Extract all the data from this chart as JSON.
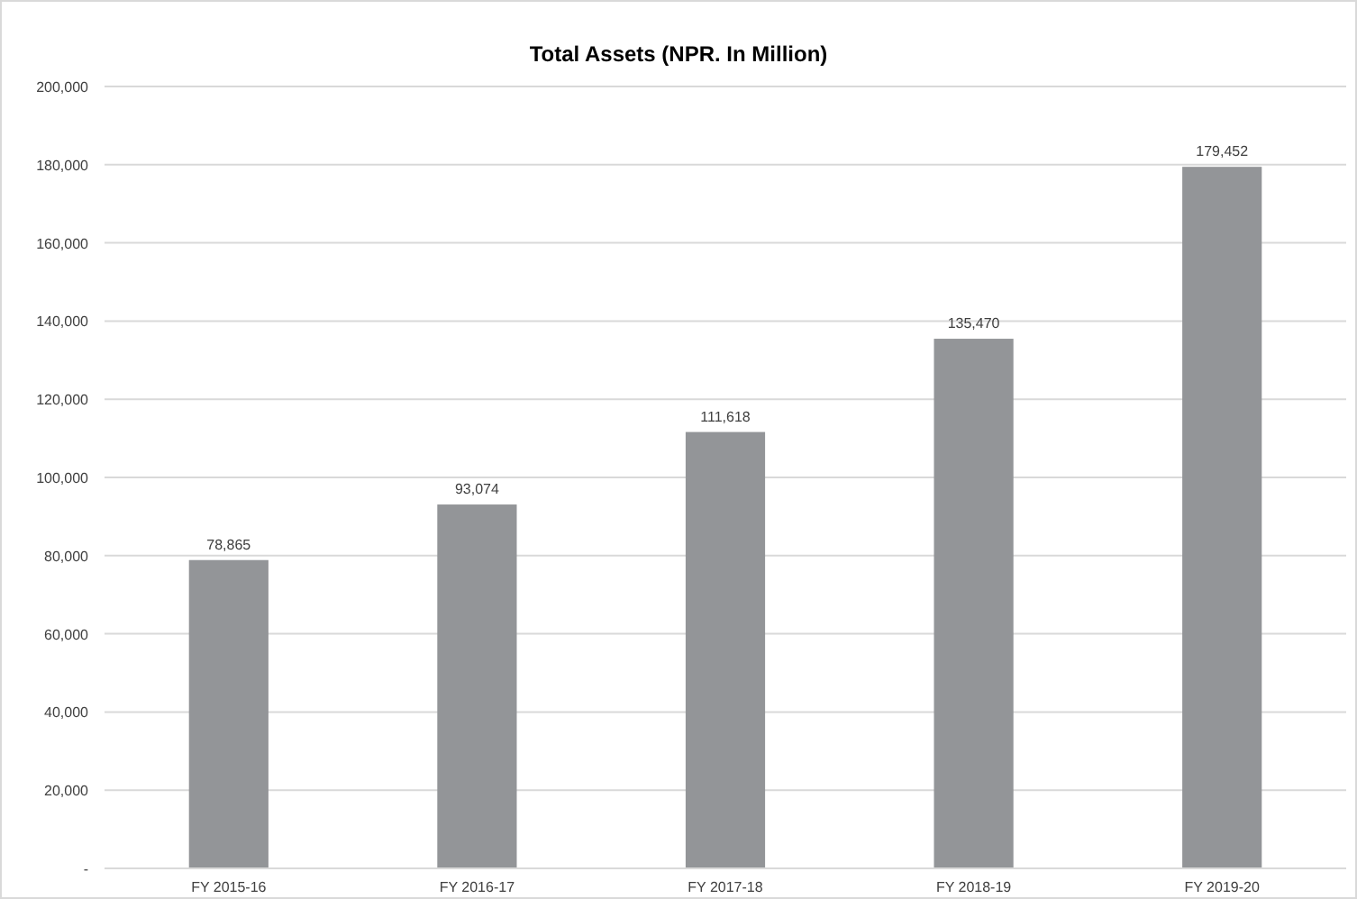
{
  "chart_data": {
    "type": "bar",
    "title": "Total Assets  (NPR. In Million)",
    "categories": [
      "FY 2015-16",
      "FY 2016-17",
      "FY 2017-18",
      "FY 2018-19",
      "FY 2019-20"
    ],
    "values": [
      78865,
      93074,
      111618,
      135470,
      179452
    ],
    "color": "#939598",
    "ylim": [
      0,
      200000
    ],
    "yticks": [
      {
        "value": 0,
        "label": "-"
      },
      {
        "value": 20000,
        "label": "20,000"
      },
      {
        "value": 40000,
        "label": "40,000"
      },
      {
        "value": 60000,
        "label": "60,000"
      },
      {
        "value": 80000,
        "label": "80,000"
      },
      {
        "value": 100000,
        "label": "100,000"
      },
      {
        "value": 120000,
        "label": "120,000"
      },
      {
        "value": 140000,
        "label": "140,000"
      },
      {
        "value": 160000,
        "label": "160,000"
      },
      {
        "value": 180000,
        "label": "180,000"
      },
      {
        "value": 200000,
        "label": "200,000"
      }
    ],
    "value_labels": [
      "78,865",
      "93,074",
      "111,618",
      "135,470",
      "179,452"
    ],
    "grid": "y"
  }
}
